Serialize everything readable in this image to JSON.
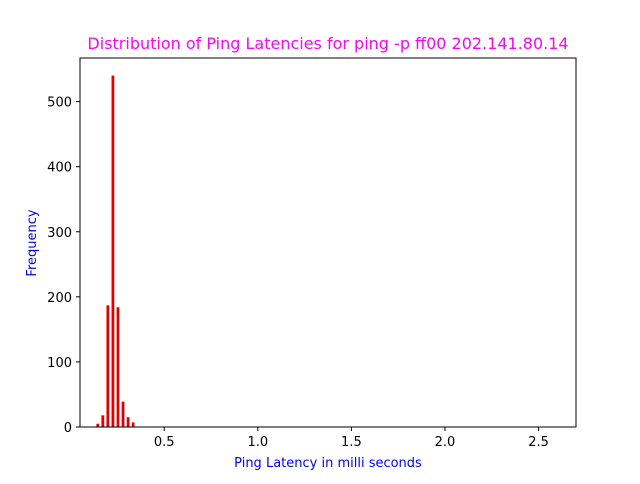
{
  "chart_data": {
    "type": "bar",
    "title": "Distribution of Ping Latencies for ping -p ff00 202.141.80.14",
    "xlabel": "Ping Latency in milli seconds",
    "ylabel": "Frequency",
    "xlim": [
      0.05,
      2.7
    ],
    "ylim": [
      0,
      567
    ],
    "xticks": [
      0.5,
      1.0,
      1.5,
      2.0,
      2.5
    ],
    "xtick_labels": [
      "0.5",
      "1.0",
      "1.5",
      "2.0",
      "2.5"
    ],
    "yticks": [
      0,
      100,
      200,
      300,
      400,
      500
    ],
    "ytick_labels": [
      "0",
      "100",
      "200",
      "300",
      "400",
      "500"
    ],
    "bar_width": 0.015,
    "x": [
      0.145,
      0.172,
      0.199,
      0.226,
      0.253,
      0.28,
      0.307,
      0.334
    ],
    "values": [
      5,
      18,
      187,
      540,
      184,
      39,
      15,
      7
    ],
    "bar_color": "#e00000",
    "title_color": "#ff00ff",
    "label_color": "#0000ff",
    "grid": false
  }
}
